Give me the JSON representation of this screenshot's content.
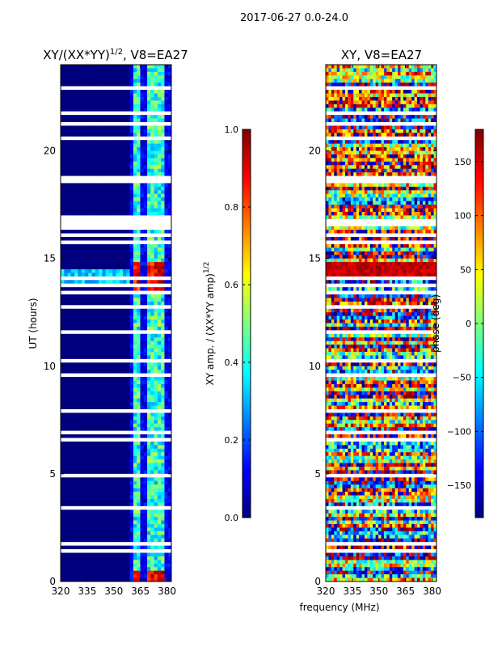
{
  "suptitle": "2017-06-27 0.0-24.0",
  "shared_xlabel": "frequency (MHz)",
  "colormap": [
    "#00007f",
    "#0000ff",
    "#007fff",
    "#00ffff",
    "#7fff7f",
    "#ffff00",
    "#ff7f00",
    "#ff0000",
    "#7f0000"
  ],
  "chart_data": [
    {
      "type": "heatmap",
      "title_main": "XY/(XX*YY)",
      "title_sup": "1/2",
      "title_rest": ", V8=EA27",
      "ylabel": "UT (hours)",
      "xlim": [
        320,
        382.5
      ],
      "ylim": [
        0,
        24
      ],
      "xticks": [
        320,
        335,
        350,
        365,
        380
      ],
      "xtick_labels": [
        "320",
        "335",
        "350",
        "365",
        "380"
      ],
      "yticks": [
        0,
        5,
        10,
        15,
        20
      ],
      "ytick_labels": [
        "0",
        "5",
        "10",
        "15",
        "20"
      ],
      "colorbar": {
        "label_main": "XY amp. / (XX*YY amp)",
        "label_sup": "1/2",
        "vmin": 0,
        "vmax": 1,
        "ticks": [
          0,
          0.2,
          0.4,
          0.6,
          0.8,
          1.0
        ],
        "tick_labels": [
          "0.0",
          "0.2",
          "0.4",
          "0.6",
          "0.8",
          "1.0"
        ]
      },
      "flagged_channels_below_MHz": 360,
      "bright_freq_bands_MHz": [
        [
          360.5,
          365
        ],
        [
          366,
          367.5
        ],
        [
          369,
          374
        ],
        [
          375.5,
          379
        ]
      ],
      "notable_times_h": [
        {
          "t": 14.2,
          "note": "high amplitude burst"
        },
        {
          "t": 0.2,
          "note": "high amplitude"
        }
      ]
    },
    {
      "type": "heatmap",
      "title": "XY, V8=EA27",
      "xlim": [
        320,
        382.5
      ],
      "ylim": [
        0,
        24
      ],
      "xticks": [
        320,
        335,
        350,
        365,
        380
      ],
      "xtick_labels": [
        "320",
        "335",
        "350",
        "365",
        "380"
      ],
      "yticks": [
        0,
        5,
        10,
        15,
        20
      ],
      "ytick_labels": [
        "0",
        "5",
        "10",
        "15",
        "20"
      ],
      "colorbar": {
        "label": "phase (deg)",
        "vmin": -180,
        "vmax": 180,
        "ticks": [
          -150,
          -100,
          -50,
          0,
          50,
          100,
          150
        ],
        "tick_labels": [
          "−150",
          "−100",
          "−50",
          "0",
          "50",
          "100",
          "150"
        ]
      },
      "notable_times_h": [
        {
          "t": 14.4,
          "note": "phase near 180 deg"
        }
      ]
    }
  ]
}
